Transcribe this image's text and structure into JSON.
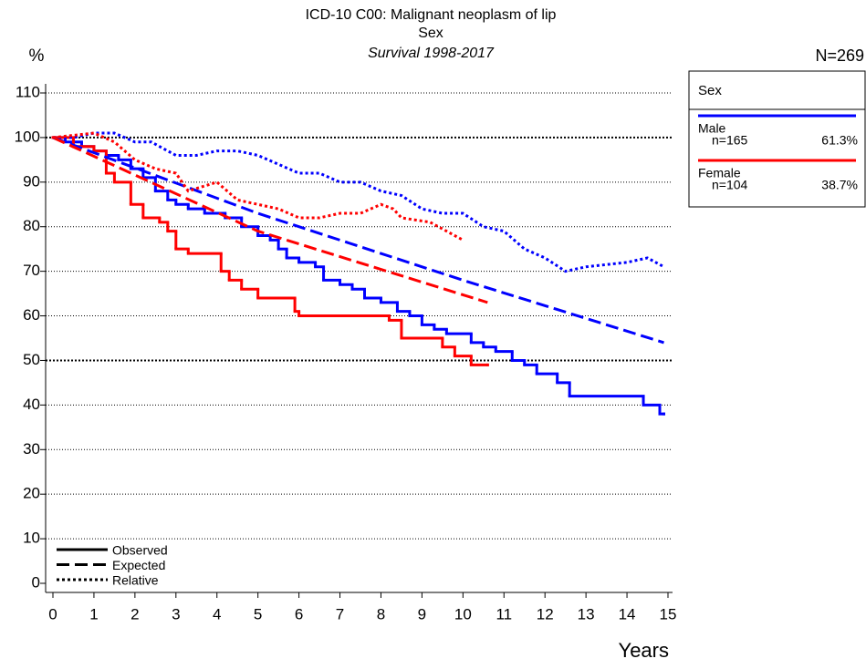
{
  "chart_data": {
    "type": "survival",
    "title": "ICD-10 C00: Malignant neoplasm of lip",
    "subtitle": "Sex",
    "period": "Survival 1998-2017",
    "y_label": "%",
    "x_label": "Years",
    "total": "N=269",
    "xlim": [
      0,
      15
    ],
    "xticks": [
      0,
      1,
      2,
      3,
      4,
      5,
      6,
      7,
      8,
      9,
      10,
      11,
      12,
      13,
      14,
      15
    ],
    "ylim": [
      0,
      110
    ],
    "yticks": [
      0,
      10,
      20,
      30,
      40,
      50,
      60,
      70,
      80,
      90,
      100,
      110
    ],
    "grid": true,
    "legend": {
      "title": "Sex",
      "entries": [
        {
          "name": "Male",
          "color": "#0000ff",
          "n": "n=165",
          "share": "61.3%"
        },
        {
          "name": "Female",
          "color": "#ff0000",
          "n": "n=104",
          "share": "38.7%"
        }
      ]
    },
    "line_styles": [
      {
        "name": "Observed",
        "dash": "solid"
      },
      {
        "name": "Expected",
        "dash": "dashed"
      },
      {
        "name": "Relative",
        "dash": "dotted"
      }
    ],
    "series": [
      {
        "name": "Male",
        "color": "#0000ff",
        "dash": "solid",
        "step": true,
        "x": [
          0,
          0.3,
          0.7,
          1,
          1.3,
          1.6,
          1.9,
          2.2,
          2.5,
          2.8,
          3,
          3.3,
          3.7,
          4.2,
          4.6,
          5,
          5.3,
          5.5,
          5.7,
          6,
          6.4,
          6.6,
          7,
          7.3,
          7.6,
          8,
          8.4,
          8.7,
          9,
          9.3,
          9.6,
          10.2,
          10.5,
          10.8,
          11.2,
          11.5,
          11.8,
          12.3,
          12.6,
          14.4,
          14.8,
          14.9
        ],
        "values": [
          100,
          99,
          98,
          97,
          96,
          95,
          93,
          91,
          88,
          86,
          85,
          84,
          83,
          82,
          80,
          78,
          77,
          75,
          73,
          72,
          71,
          68,
          67,
          66,
          64,
          63,
          61,
          60,
          58,
          57,
          56,
          54,
          53,
          52,
          50,
          49,
          47,
          45,
          42,
          40,
          38,
          38
        ]
      },
      {
        "name": "Female",
        "color": "#ff0000",
        "dash": "solid",
        "step": true,
        "x": [
          0,
          0.5,
          1,
          1.3,
          1.5,
          1.9,
          2.2,
          2.6,
          2.8,
          3,
          3.3,
          4.1,
          4.3,
          4.6,
          5,
          5.9,
          6,
          7.5,
          8.2,
          8.5,
          9.5,
          9.8,
          10.2,
          10.6
        ],
        "values": [
          100,
          98,
          97,
          92,
          90,
          85,
          82,
          81,
          79,
          75,
          74,
          70,
          68,
          66,
          64,
          61,
          60,
          60,
          59,
          55,
          53,
          51,
          49,
          49
        ]
      },
      {
        "name": "Male",
        "color": "#0000ff",
        "dash": "dashed",
        "step": false,
        "x": [
          0,
          5,
          10,
          14.9
        ],
        "values": [
          100,
          83,
          68,
          54
        ]
      },
      {
        "name": "Female",
        "color": "#ff0000",
        "dash": "dashed",
        "step": false,
        "x": [
          0,
          5,
          10.6
        ],
        "values": [
          100,
          79,
          63
        ]
      },
      {
        "name": "Male",
        "color": "#0000ff",
        "dash": "dotted",
        "step": false,
        "x": [
          0,
          0.5,
          1,
          1.5,
          2,
          2.4,
          3,
          3.5,
          4,
          4.5,
          5,
          5.5,
          6,
          6.5,
          7,
          7.5,
          8,
          8.5,
          9,
          9.5,
          10,
          10.5,
          11,
          11.5,
          12,
          12.5,
          13,
          14,
          14.5,
          14.9
        ],
        "values": [
          100,
          100,
          101,
          101,
          99,
          99,
          96,
          96,
          97,
          97,
          96,
          94,
          92,
          92,
          90,
          90,
          88,
          87,
          84,
          83,
          83,
          80,
          79,
          75,
          73,
          70,
          71,
          72,
          73,
          71
        ]
      },
      {
        "name": "Female",
        "color": "#ff0000",
        "dash": "dotted",
        "step": false,
        "x": [
          0,
          1,
          1.5,
          2,
          2.5,
          3,
          3.3,
          4,
          4.5,
          5,
          5.5,
          6,
          6.5,
          7,
          7.5,
          8,
          8.3,
          8.5,
          9.2,
          9.6,
          10
        ],
        "values": [
          100,
          101,
          99,
          95,
          93,
          92,
          88,
          90,
          86,
          85,
          84,
          82,
          82,
          83,
          83,
          85,
          84,
          82,
          81,
          79,
          77
        ]
      }
    ]
  }
}
